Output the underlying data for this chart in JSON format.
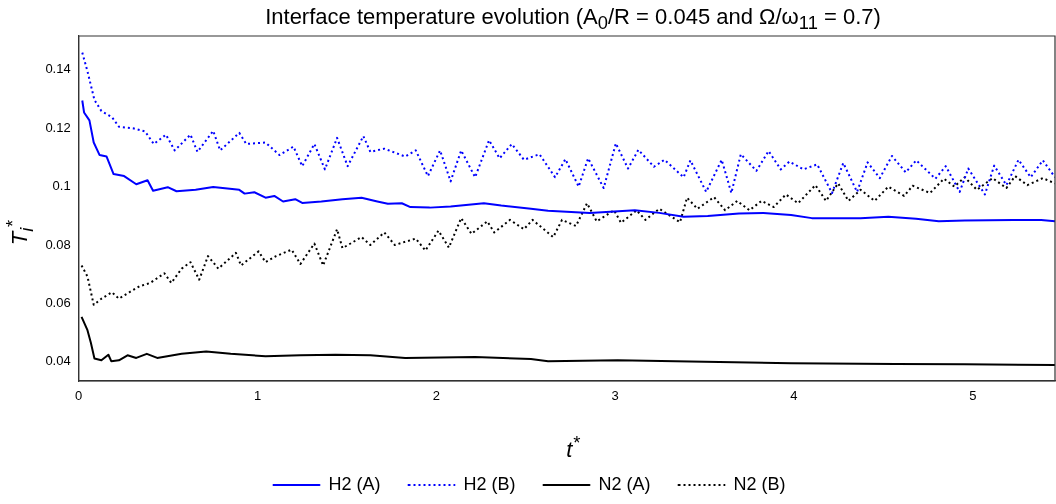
{
  "chart_data": {
    "type": "line",
    "title": "Interface temperature evolution (A$_{0}$/R = 0.045 and Ω/ω$_{11}$ = 0.7)",
    "xlabel": "t$^{*}$",
    "ylabel": "T$_{i}$$^{*}$",
    "xlim": [
      0,
      5.46
    ],
    "ylim": [
      0.0334,
      0.1516
    ],
    "xticks": [
      0,
      1,
      2,
      3,
      4,
      5
    ],
    "yticks": [
      0.04,
      0.06,
      0.08,
      0.1,
      0.12,
      0.14
    ],
    "grid": false,
    "legend": "bottom",
    "marker": "none",
    "series": [
      {
        "name": "H2 (A)",
        "color": "#0000ff",
        "line_style": "solid",
        "x": [
          0.02,
          0.03,
          0.06,
          0.084,
          0.117,
          0.156,
          0.195,
          0.254,
          0.322,
          0.385,
          0.416,
          0.498,
          0.547,
          0.654,
          0.752,
          0.898,
          0.928,
          0.982,
          1.045,
          1.094,
          1.143,
          1.211,
          1.25,
          1.357,
          1.475,
          1.582,
          1.67,
          1.729,
          1.807,
          1.855,
          1.963,
          2.08,
          2.266,
          2.363,
          2.529,
          2.625,
          2.858,
          3.11,
          3.247,
          3.383,
          3.518,
          3.693,
          3.829,
          3.984,
          4.1,
          4.372,
          4.528,
          4.683,
          4.81,
          4.955,
          5.227,
          5.383,
          5.46
        ],
        "values": [
          0.1295,
          0.1254,
          0.1227,
          0.1151,
          0.1108,
          0.1103,
          0.1043,
          0.1036,
          0.1008,
          0.1022,
          0.0986,
          0.0998,
          0.0984,
          0.0989,
          0.0999,
          0.0989,
          0.0976,
          0.0981,
          0.0962,
          0.0968,
          0.0949,
          0.0957,
          0.0944,
          0.0949,
          0.0957,
          0.0962,
          0.0949,
          0.0941,
          0.0943,
          0.093,
          0.0928,
          0.0932,
          0.0943,
          0.0935,
          0.0924,
          0.0917,
          0.091,
          0.0919,
          0.091,
          0.0897,
          0.0899,
          0.0908,
          0.091,
          0.0903,
          0.0892,
          0.0892,
          0.0897,
          0.089,
          0.0881,
          0.0884,
          0.0886,
          0.0886,
          0.0881
        ]
      },
      {
        "name": "H2 (B)",
        "color": "#0000ff",
        "line_style": "dotted",
        "x": [
          0.02,
          0.049,
          0.088,
          0.127,
          0.186,
          0.225,
          0.303,
          0.371,
          0.42,
          0.488,
          0.537,
          0.625,
          0.664,
          0.752,
          0.791,
          0.898,
          0.937,
          1.045,
          1.123,
          1.201,
          1.25,
          1.318,
          1.377,
          1.445,
          1.504,
          1.592,
          1.631,
          1.709,
          1.826,
          1.885,
          1.953,
          2.021,
          2.08,
          2.139,
          2.217,
          2.295,
          2.354,
          2.422,
          2.49,
          2.577,
          2.664,
          2.722,
          2.796,
          2.849,
          2.936,
          3.004,
          3.072,
          3.13,
          3.217,
          3.276,
          3.383,
          3.421,
          3.509,
          3.596,
          3.65,
          3.703,
          3.79,
          3.858,
          3.926,
          3.975,
          4.052,
          4.13,
          4.213,
          4.276,
          4.353,
          4.412,
          4.48,
          4.548,
          4.625,
          4.684,
          4.791,
          4.849,
          4.927,
          4.975,
          5.068,
          5.12,
          5.188,
          5.256,
          5.324,
          5.392,
          5.46
        ],
        "values": [
          0.1459,
          0.1395,
          0.1297,
          0.1259,
          0.1238,
          0.1205,
          0.12,
          0.1189,
          0.1146,
          0.1178,
          0.1124,
          0.1178,
          0.1119,
          0.1191,
          0.1124,
          0.1184,
          0.1146,
          0.1151,
          0.1108,
          0.1137,
          0.107,
          0.1146,
          0.1059,
          0.1167,
          0.107,
          0.1173,
          0.1119,
          0.113,
          0.1103,
          0.1124,
          0.1036,
          0.1124,
          0.1018,
          0.1124,
          0.1032,
          0.1159,
          0.1097,
          0.1146,
          0.1092,
          0.1111,
          0.1032,
          0.1094,
          0.1,
          0.1097,
          0.0995,
          0.1148,
          0.1062,
          0.1126,
          0.1068,
          0.1092,
          0.1032,
          0.109,
          0.0982,
          0.1092,
          0.0978,
          0.1111,
          0.1054,
          0.1122,
          0.1059,
          0.1086,
          0.1059,
          0.1076,
          0.0978,
          0.1081,
          0.0982,
          0.1083,
          0.1029,
          0.1105,
          0.1049,
          0.109,
          0.1027,
          0.107,
          0.0982,
          0.1062,
          0.0973,
          0.1072,
          0.1005,
          0.1092,
          0.1032,
          0.109,
          0.1032
        ]
      },
      {
        "name": "N2 (A)",
        "color": "#000000",
        "line_style": "solid",
        "x": [
          0.016,
          0.049,
          0.068,
          0.088,
          0.127,
          0.166,
          0.182,
          0.225,
          0.273,
          0.322,
          0.381,
          0.439,
          0.576,
          0.713,
          0.85,
          1.045,
          1.24,
          1.436,
          1.631,
          1.826,
          2.217,
          2.529,
          2.625,
          3.014,
          3.5,
          3.984,
          4.567,
          4.955,
          5.46
        ],
        "values": [
          0.0554,
          0.0508,
          0.0465,
          0.0411,
          0.0405,
          0.0424,
          0.0402,
          0.0405,
          0.0422,
          0.0413,
          0.0427,
          0.0413,
          0.0427,
          0.0435,
          0.0427,
          0.0419,
          0.0422,
          0.0424,
          0.0422,
          0.0413,
          0.0416,
          0.0409,
          0.0402,
          0.0405,
          0.04,
          0.0395,
          0.0392,
          0.0391,
          0.0389
        ]
      },
      {
        "name": "N2 (B)",
        "color": "#000000",
        "line_style": "dotted",
        "x": [
          0.016,
          0.049,
          0.084,
          0.127,
          0.186,
          0.225,
          0.283,
          0.342,
          0.4,
          0.479,
          0.518,
          0.576,
          0.625,
          0.674,
          0.723,
          0.781,
          0.879,
          0.908,
          1.006,
          1.045,
          1.104,
          1.191,
          1.24,
          1.318,
          1.367,
          1.445,
          1.475,
          1.582,
          1.631,
          1.709,
          1.768,
          1.885,
          1.939,
          2.012,
          2.07,
          2.139,
          2.197,
          2.285,
          2.324,
          2.412,
          2.49,
          2.538,
          2.654,
          2.703,
          2.781,
          2.843,
          2.897,
          2.994,
          3.033,
          3.12,
          3.169,
          3.247,
          3.363,
          3.402,
          3.46,
          3.553,
          3.615,
          3.683,
          3.751,
          3.819,
          3.887,
          3.955,
          4.023,
          4.12,
          4.179,
          4.247,
          4.305,
          4.373,
          4.451,
          4.528,
          4.616,
          4.664,
          4.761,
          4.839,
          4.897,
          4.955,
          5.023,
          5.111,
          5.188,
          5.237,
          5.305,
          5.392,
          5.46
        ],
        "values": [
          0.073,
          0.0692,
          0.0595,
          0.0616,
          0.0638,
          0.0616,
          0.0638,
          0.0659,
          0.067,
          0.0703,
          0.067,
          0.0719,
          0.0741,
          0.0681,
          0.0762,
          0.0719,
          0.0773,
          0.073,
          0.0778,
          0.0741,
          0.0762,
          0.0784,
          0.0735,
          0.0805,
          0.073,
          0.0854,
          0.0789,
          0.0827,
          0.08,
          0.0843,
          0.08,
          0.0822,
          0.0781,
          0.0849,
          0.0791,
          0.0892,
          0.0838,
          0.0881,
          0.0843,
          0.0886,
          0.0854,
          0.0886,
          0.0827,
          0.0886,
          0.0865,
          0.0943,
          0.0881,
          0.0919,
          0.0876,
          0.0919,
          0.0886,
          0.0924,
          0.0878,
          0.0962,
          0.0924,
          0.0964,
          0.0919,
          0.0951,
          0.0919,
          0.0951,
          0.093,
          0.0973,
          0.0943,
          0.1005,
          0.0951,
          0.1011,
          0.0951,
          0.0989,
          0.0951,
          0.1,
          0.0968,
          0.1003,
          0.0978,
          0.1027,
          0.1,
          0.1032,
          0.0989,
          0.1029,
          0.0995,
          0.1036,
          0.1005,
          0.1029,
          0.1011
        ]
      }
    ]
  }
}
